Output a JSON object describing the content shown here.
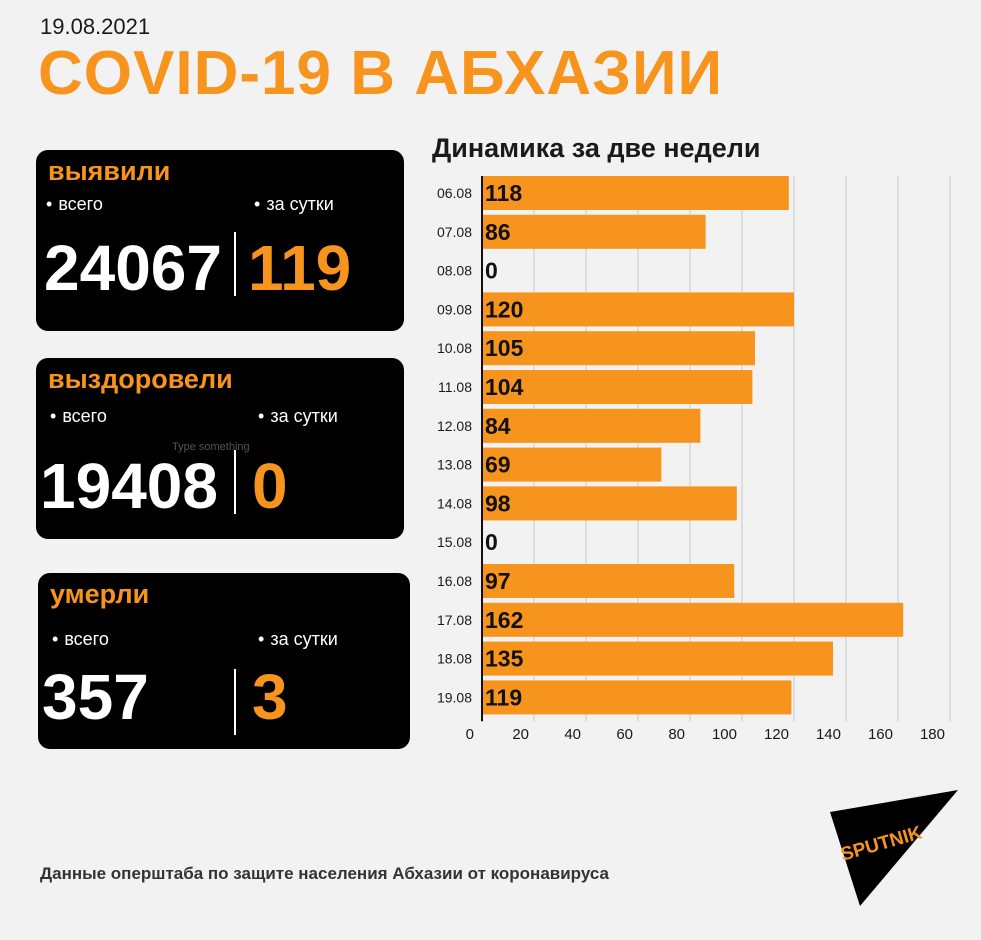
{
  "header": {
    "date": "19.08.2021",
    "title": "COVID-19 В АБХАЗИИ"
  },
  "cards": [
    {
      "heading": "выявили",
      "total_label": "всего",
      "daily_label": "за сутки",
      "total": "24067",
      "daily": "119"
    },
    {
      "heading": "выздоровели",
      "total_label": "всего",
      "daily_label": "за сутки",
      "total": "19408",
      "daily": "0"
    },
    {
      "heading": "умерли",
      "total_label": "всего",
      "daily_label": "за сутки",
      "total": "357",
      "daily": "3"
    }
  ],
  "placeholder_text": "Type something",
  "footer": "Данные оперштаба по защите населения Абхазии от коронавируса",
  "logo_text": "SPUTNIK",
  "colors": {
    "accent": "#f7941d",
    "card_bg": "#000000",
    "page_bg": "#f2f2f2"
  },
  "chart_data": {
    "type": "bar",
    "orientation": "horizontal",
    "title": "Динамика за две недели",
    "categories": [
      "06.08",
      "07.08",
      "08.08",
      "09.08",
      "10.08",
      "11.08",
      "12.08",
      "13.08",
      "14.08",
      "15.08",
      "16.08",
      "17.08",
      "18.08",
      "19.08"
    ],
    "values": [
      118,
      86,
      0,
      120,
      105,
      104,
      84,
      69,
      98,
      0,
      97,
      162,
      135,
      119
    ],
    "xticks": [
      0,
      20,
      40,
      60,
      80,
      100,
      120,
      140,
      160,
      180
    ],
    "xlim": [
      0,
      180
    ],
    "grid": true,
    "bar_color": "#f7941d"
  }
}
